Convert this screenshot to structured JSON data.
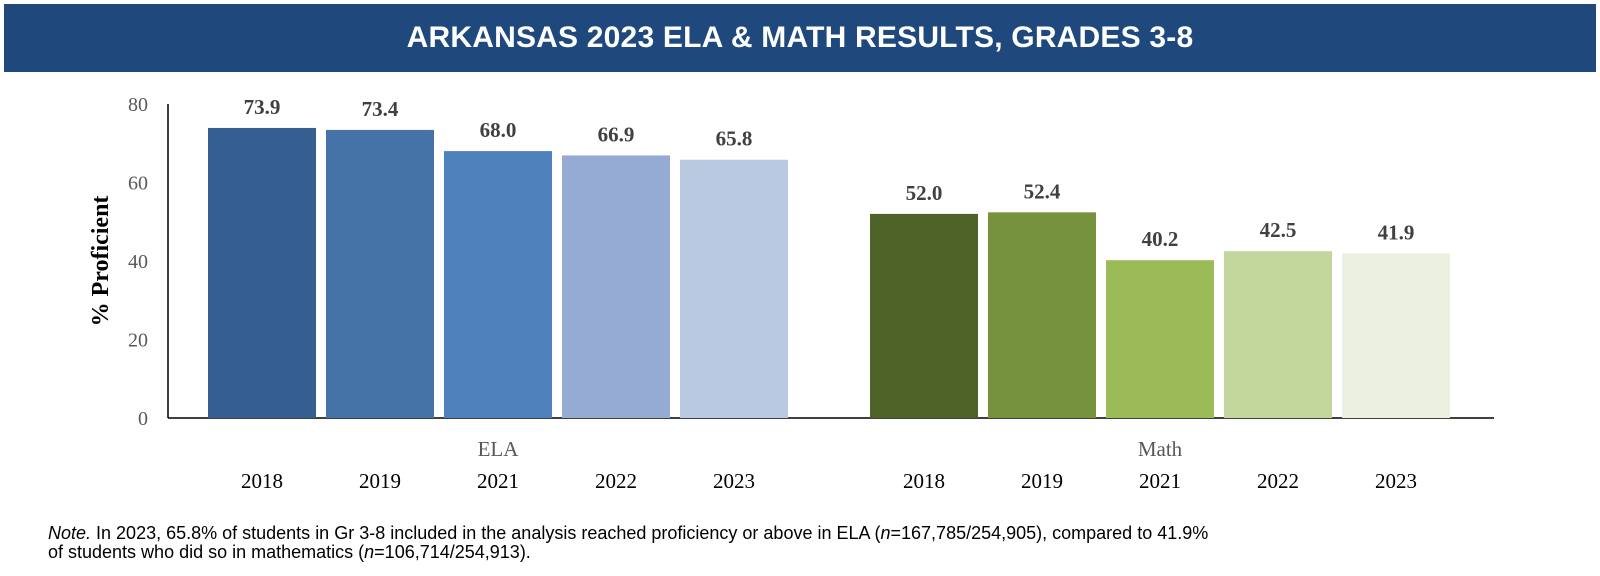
{
  "header": {
    "title": "ARKANSAS 2023 ELA & MATH RESULTS, GRADES 3-8"
  },
  "chart_data": {
    "type": "bar",
    "ylabel": "% Proficient",
    "ylim": [
      0,
      80
    ],
    "yticks": [
      0,
      20,
      40,
      60,
      80
    ],
    "grid": false,
    "data_labels": true,
    "groups": [
      {
        "name": "ELA",
        "categories": [
          "2018",
          "2019",
          "2021",
          "2022",
          "2023"
        ],
        "values": [
          73.9,
          73.4,
          68.0,
          66.9,
          65.8
        ],
        "value_labels": [
          "73.9",
          "73.4",
          "68.0",
          "66.9",
          "65.8"
        ],
        "colors": [
          "#365f91",
          "#4572a7",
          "#4f81bd",
          "#95abd3",
          "#b9c9e2"
        ]
      },
      {
        "name": "Math",
        "categories": [
          "2018",
          "2019",
          "2021",
          "2022",
          "2023"
        ],
        "values": [
          52.0,
          52.4,
          40.2,
          42.5,
          41.9
        ],
        "value_labels": [
          "52.0",
          "52.4",
          "40.2",
          "42.5",
          "41.9"
        ],
        "colors": [
          "#4f6228",
          "#76923c",
          "#9bbb59",
          "#c3d69b",
          "#ebf1de"
        ]
      }
    ]
  },
  "note": {
    "label": "Note.",
    "line1_a": " In 2023, 65.8% of students in Gr 3-8 included in the analysis reached proficiency or above in ELA (",
    "n_symbol": "n",
    "line1_b": "=167,785/254,905), compared to 41.9%",
    "line2_a": "of students who did so in mathematics (",
    "line2_b": "=106,714/254,913)."
  }
}
